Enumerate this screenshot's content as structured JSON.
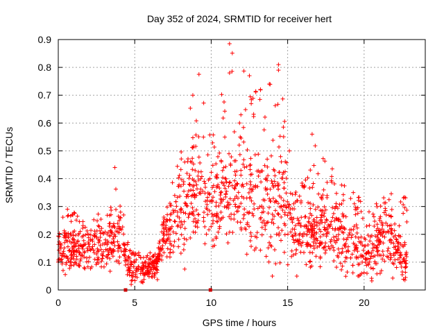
{
  "chart_data": {
    "type": "scatter",
    "title": "Day 352 of 2024, SRMTID for receiver hert",
    "xlabel": "GPS time / hours",
    "ylabel": "SRMTID / TECUs",
    "xlim": [
      0,
      24
    ],
    "ylim": [
      0,
      0.9
    ],
    "xticks": [
      0,
      5,
      10,
      15,
      20
    ],
    "yticks": [
      0,
      0.1,
      0.2,
      0.3,
      0.4,
      0.5,
      0.6,
      0.7,
      0.8,
      0.9
    ],
    "xtick_labels": [
      "0",
      "5",
      "10",
      "15",
      "20"
    ],
    "ytick_labels": [
      "0",
      "0.1",
      "0.2",
      "0.3",
      "0.4",
      "0.5",
      "0.6",
      "0.7",
      "0.8",
      "0.9"
    ],
    "grid": true,
    "marker": "plus",
    "series_color": "#ff0000",
    "data_gap_markers_x": [
      4.4,
      9.95
    ],
    "envelope": [
      {
        "x": 0.0,
        "base": 0.14,
        "spread": 0.06,
        "peak": 0.26
      },
      {
        "x": 1.0,
        "base": 0.15,
        "spread": 0.06,
        "peak": 0.29
      },
      {
        "x": 2.0,
        "base": 0.14,
        "spread": 0.05,
        "peak": 0.24
      },
      {
        "x": 3.0,
        "base": 0.15,
        "spread": 0.06,
        "peak": 0.3
      },
      {
        "x": 3.7,
        "base": 0.18,
        "spread": 0.08,
        "peak": 0.44
      },
      {
        "x": 4.3,
        "base": 0.15,
        "spread": 0.05,
        "peak": 0.31
      },
      {
        "x": 4.6,
        "base": 0.08,
        "spread": 0.04,
        "peak": 0.15
      },
      {
        "x": 5.5,
        "base": 0.07,
        "spread": 0.04,
        "peak": 0.13
      },
      {
        "x": 6.5,
        "base": 0.09,
        "spread": 0.04,
        "peak": 0.14
      },
      {
        "x": 7.0,
        "base": 0.2,
        "spread": 0.07,
        "peak": 0.3
      },
      {
        "x": 8.0,
        "base": 0.28,
        "spread": 0.12,
        "peak": 0.52
      },
      {
        "x": 8.7,
        "base": 0.35,
        "spread": 0.15,
        "peak": 0.7
      },
      {
        "x": 9.2,
        "base": 0.33,
        "spread": 0.14,
        "peak": 0.78
      },
      {
        "x": 10.0,
        "base": 0.32,
        "spread": 0.12,
        "peak": 0.55
      },
      {
        "x": 11.2,
        "base": 0.34,
        "spread": 0.14,
        "peak": 0.89
      },
      {
        "x": 12.5,
        "base": 0.33,
        "spread": 0.13,
        "peak": 0.77
      },
      {
        "x": 13.5,
        "base": 0.31,
        "spread": 0.13,
        "peak": 0.74
      },
      {
        "x": 14.4,
        "base": 0.32,
        "spread": 0.14,
        "peak": 0.81
      },
      {
        "x": 15.5,
        "base": 0.2,
        "spread": 0.08,
        "peak": 0.35
      },
      {
        "x": 16.7,
        "base": 0.22,
        "spread": 0.1,
        "peak": 0.56
      },
      {
        "x": 18.0,
        "base": 0.21,
        "spread": 0.09,
        "peak": 0.43
      },
      {
        "x": 19.5,
        "base": 0.16,
        "spread": 0.08,
        "peak": 0.35
      },
      {
        "x": 20.5,
        "base": 0.12,
        "spread": 0.06,
        "peak": 0.27
      },
      {
        "x": 21.5,
        "base": 0.2,
        "spread": 0.09,
        "peak": 0.45
      },
      {
        "x": 22.3,
        "base": 0.14,
        "spread": 0.07,
        "peak": 0.34
      },
      {
        "x": 22.8,
        "base": 0.1,
        "spread": 0.06,
        "peak": 0.33
      }
    ],
    "extreme_points": [
      {
        "x": 11.2,
        "y": 0.885
      },
      {
        "x": 14.4,
        "y": 0.81
      },
      {
        "x": 14.4,
        "y": 0.79
      },
      {
        "x": 9.2,
        "y": 0.775
      },
      {
        "x": 11.2,
        "y": 0.78
      },
      {
        "x": 12.5,
        "y": 0.77
      },
      {
        "x": 13.8,
        "y": 0.74
      },
      {
        "x": 8.8,
        "y": 0.7
      },
      {
        "x": 16.6,
        "y": 0.56
      },
      {
        "x": 14.0,
        "y": 0.05
      },
      {
        "x": 15.6,
        "y": 0.05
      },
      {
        "x": 3.7,
        "y": 0.44
      },
      {
        "x": 0.6,
        "y": 0.29
      }
    ]
  }
}
